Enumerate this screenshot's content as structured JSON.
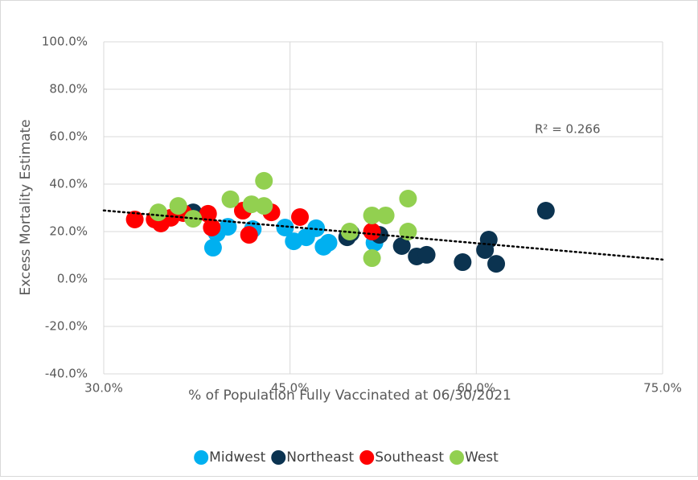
{
  "chart_data": {
    "type": "scatter",
    "xlabel": "% of Population Fully Vaccinated at 06/30/2021",
    "ylabel": "Excess Mortality Estimate",
    "xlim": [
      30,
      75
    ],
    "ylim": [
      -40,
      100
    ],
    "xticks": [
      {
        "value": 30,
        "label": "30.0%"
      },
      {
        "value": 45,
        "label": "45.0%"
      },
      {
        "value": 60,
        "label": "60.0%"
      },
      {
        "value": 75,
        "label": "75.0%"
      }
    ],
    "yticks": [
      {
        "value": -40,
        "label": "-40.0%"
      },
      {
        "value": -20,
        "label": "-20.0%"
      },
      {
        "value": 0,
        "label": "0.0%"
      },
      {
        "value": 20,
        "label": "20.0%"
      },
      {
        "value": 40,
        "label": "40.0%"
      },
      {
        "value": 60,
        "label": "60.0%"
      },
      {
        "value": 80,
        "label": "80.0%"
      },
      {
        "value": 100,
        "label": "100.0%"
      }
    ],
    "grid": true,
    "legend": "bottom",
    "series": [
      {
        "name": "Midwest",
        "color": "#00b0f0",
        "x": [
          38.8,
          39.1,
          40.0,
          42.0,
          44.6,
          45.3,
          46.3,
          47.1,
          47.7,
          48.1,
          51.8,
          37.2
        ],
        "y": [
          13.2,
          19.3,
          22.0,
          21.0,
          21.7,
          15.9,
          17.6,
          21.4,
          13.6,
          15.3,
          15.3,
          27.8
        ]
      },
      {
        "name": "Northeast",
        "color": "#0b3350",
        "x": [
          37.2,
          49.6,
          49.9,
          52.2,
          54.0,
          55.2,
          56.0,
          58.9,
          60.7,
          61.0,
          61.6,
          65.6
        ],
        "y": [
          28.1,
          17.6,
          19.3,
          18.6,
          13.9,
          9.5,
          10.2,
          7.1,
          12.2,
          16.6,
          6.4,
          28.8
        ]
      },
      {
        "name": "Southeast",
        "color": "#ff0000",
        "x": [
          32.5,
          34.1,
          34.6,
          35.4,
          36.4,
          38.4,
          38.7,
          41.2,
          41.7,
          43.5,
          45.8,
          51.6
        ],
        "y": [
          25.1,
          25.1,
          23.4,
          25.8,
          27.8,
          27.5,
          21.7,
          28.8,
          18.6,
          28.1,
          26.1,
          20.0
        ]
      },
      {
        "name": "West",
        "color": "#92d050",
        "x": [
          34.4,
          36.0,
          37.2,
          40.2,
          41.9,
          42.9,
          42.9,
          49.8,
          51.6,
          51.6,
          52.7,
          54.5,
          54.5
        ],
        "y": [
          28.1,
          30.8,
          25.4,
          33.6,
          31.5,
          30.8,
          41.4,
          20.0,
          8.8,
          26.8,
          26.8,
          20.0,
          33.9
        ]
      }
    ],
    "trendline": {
      "x": [
        30,
        75
      ],
      "y": [
        28.9,
        8.2
      ],
      "color": "#000000"
    },
    "annotation": "R² = 0.266"
  }
}
